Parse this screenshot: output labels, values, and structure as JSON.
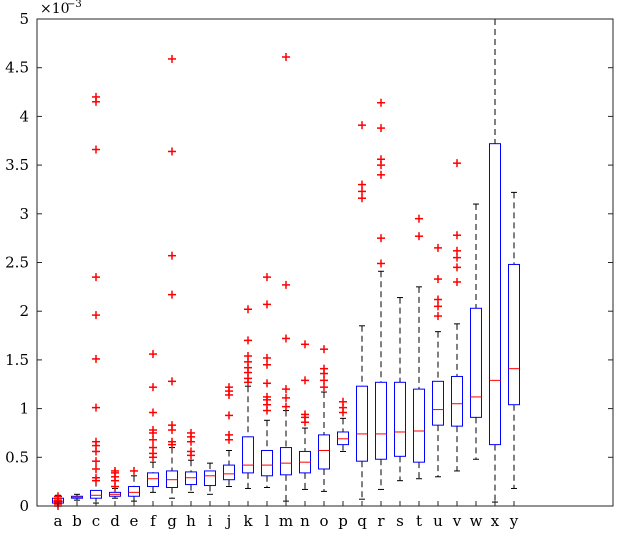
{
  "chart_data": {
    "type": "box",
    "ylim": [
      0,
      0.005
    ],
    "exponent_label": {
      "base": "×10",
      "power": "−3"
    },
    "yticks": [
      {
        "value": 0,
        "label": "0"
      },
      {
        "value": 0.0005,
        "label": "0.5"
      },
      {
        "value": 0.001,
        "label": "1"
      },
      {
        "value": 0.0015,
        "label": "1.5"
      },
      {
        "value": 0.002,
        "label": "2"
      },
      {
        "value": 0.0025,
        "label": "2.5"
      },
      {
        "value": 0.003,
        "label": "3"
      },
      {
        "value": 0.0035,
        "label": "3.5"
      },
      {
        "value": 0.004,
        "label": "4"
      },
      {
        "value": 0.0045,
        "label": "4.5"
      },
      {
        "value": 0.005,
        "label": "5"
      }
    ],
    "categories": [
      "a",
      "b",
      "c",
      "d",
      "e",
      "f",
      "g",
      "h",
      "i",
      "j",
      "k",
      "l",
      "m",
      "n",
      "o",
      "p",
      "q",
      "r",
      "s",
      "t",
      "u",
      "v",
      "w",
      "x",
      "y"
    ],
    "colors": {
      "box": "#0000ff",
      "median": "#ff0000",
      "outlier": "#ff0000",
      "whisker": "#000000"
    },
    "boxes": [
      {
        "min": 0.0,
        "q1": 3e-05,
        "median": 5e-05,
        "q3": 8e-05,
        "max": 0.00011,
        "outliers": [
          0.0,
          2e-05,
          4e-05,
          6e-05,
          8e-05,
          0.0001
        ]
      },
      {
        "min": 6e-05,
        "q1": 8e-05,
        "median": 9e-05,
        "q3": 0.0001,
        "max": 0.00012,
        "outliers": []
      },
      {
        "min": 3e-05,
        "q1": 8e-05,
        "median": 0.00011,
        "q3": 0.00016,
        "max": 0.00026,
        "outliers": [
          0.00026,
          0.00029,
          0.00038,
          0.00046,
          0.00056,
          0.00062,
          0.00066,
          0.00101,
          0.00151,
          0.00196,
          0.00235,
          0.00366,
          0.00415,
          0.0042
        ]
      },
      {
        "min": 8e-05,
        "q1": 0.0001,
        "median": 0.00012,
        "q3": 0.00014,
        "max": 0.00018,
        "outliers": [
          0.0002,
          0.00026,
          0.0003,
          0.00034,
          0.00036
        ]
      },
      {
        "min": 5e-05,
        "q1": 0.0001,
        "median": 0.00014,
        "q3": 0.0002,
        "max": 0.00031,
        "outliers": [
          0.00036
        ]
      },
      {
        "min": 0.00014,
        "q1": 0.0002,
        "median": 0.00028,
        "q3": 0.00034,
        "max": 0.00045,
        "outliers": [
          0.0005,
          0.00054,
          0.0006,
          0.00068,
          0.00075,
          0.00078,
          0.00096,
          0.00122,
          0.00156
        ]
      },
      {
        "min": 8e-05,
        "q1": 0.00019,
        "median": 0.00027,
        "q3": 0.00036,
        "max": 0.0006,
        "outliers": [
          0.00063,
          0.00066,
          0.00078,
          0.00083,
          0.00128,
          0.00217,
          0.00257,
          0.00364,
          0.00459
        ]
      },
      {
        "min": 0.00014,
        "q1": 0.00022,
        "median": 0.00029,
        "q3": 0.00035,
        "max": 0.00047,
        "outliers": [
          0.00052,
          0.00056,
          0.00066,
          0.00071,
          0.00075
        ]
      },
      {
        "min": 0.00012,
        "q1": 0.00021,
        "median": 0.00031,
        "q3": 0.00036,
        "max": 0.00044,
        "outliers": []
      },
      {
        "min": 0.0002,
        "q1": 0.00027,
        "median": 0.00033,
        "q3": 0.00042,
        "max": 0.00057,
        "outliers": [
          0.00068,
          0.00073,
          0.00093,
          0.00114,
          0.00118,
          0.00122
        ]
      },
      {
        "min": 0.00018,
        "q1": 0.00034,
        "median": 0.00042,
        "q3": 0.00071,
        "max": 0.00123,
        "outliers": [
          0.00127,
          0.00131,
          0.00137,
          0.00142,
          0.00148,
          0.00154,
          0.0017,
          0.00202
        ]
      },
      {
        "min": 0.00019,
        "q1": 0.00031,
        "median": 0.00042,
        "q3": 0.00057,
        "max": 0.00088,
        "outliers": [
          0.00098,
          0.00104,
          0.00109,
          0.00112,
          0.00126,
          0.00145,
          0.00152,
          0.00207,
          0.00235
        ]
      },
      {
        "min": 5e-05,
        "q1": 0.00032,
        "median": 0.00044,
        "q3": 0.0006,
        "max": 0.00098,
        "outliers": [
          0.00102,
          0.00111,
          0.0012,
          0.00172,
          0.00227,
          0.00461
        ]
      },
      {
        "min": 0.00017,
        "q1": 0.00034,
        "median": 0.00045,
        "q3": 0.00056,
        "max": 0.0008,
        "outliers": [
          0.00086,
          0.00091,
          0.00094,
          0.00129,
          0.00166
        ]
      },
      {
        "min": 0.00015,
        "q1": 0.00038,
        "median": 0.00057,
        "q3": 0.00073,
        "max": 0.00117,
        "outliers": [
          0.00122,
          0.00129,
          0.00136,
          0.00141,
          0.00161
        ]
      },
      {
        "min": 0.00056,
        "q1": 0.00063,
        "median": 0.00069,
        "q3": 0.00076,
        "max": 0.0009,
        "outliers": [
          0.00096,
          0.00101,
          0.00107
        ]
      },
      {
        "min": 7e-05,
        "q1": 0.00046,
        "median": 0.00074,
        "q3": 0.00123,
        "max": 0.00185,
        "outliers": [
          0.00316,
          0.00323,
          0.0033,
          0.00391
        ]
      },
      {
        "min": 0.00017,
        "q1": 0.00048,
        "median": 0.00074,
        "q3": 0.00127,
        "max": 0.00241,
        "outliers": [
          0.00249,
          0.00275,
          0.0034,
          0.0035,
          0.00356,
          0.00388,
          0.00414
        ]
      },
      {
        "min": 0.00026,
        "q1": 0.00051,
        "median": 0.00076,
        "q3": 0.00127,
        "max": 0.00214,
        "outliers": []
      },
      {
        "min": 0.00028,
        "q1": 0.00045,
        "median": 0.00077,
        "q3": 0.0012,
        "max": 0.00225,
        "outliers": [
          0.00277,
          0.00295
        ]
      },
      {
        "min": 0.0003,
        "q1": 0.00083,
        "median": 0.00099,
        "q3": 0.00128,
        "max": 0.00179,
        "outliers": [
          0.00195,
          0.00205,
          0.00212,
          0.00233,
          0.00265
        ]
      },
      {
        "min": 0.00036,
        "q1": 0.00082,
        "median": 0.00105,
        "q3": 0.00133,
        "max": 0.00187,
        "outliers": [
          0.0023,
          0.00245,
          0.00255,
          0.00262,
          0.00278,
          0.00352
        ]
      },
      {
        "min": 0.00048,
        "q1": 0.00091,
        "median": 0.00112,
        "q3": 0.00203,
        "max": 0.0031,
        "outliers": []
      },
      {
        "min": 4e-05,
        "q1": 0.00063,
        "median": 0.00129,
        "q3": 0.00372,
        "max": 0.005,
        "outliers": []
      },
      {
        "min": 0.00018,
        "q1": 0.00104,
        "median": 0.00141,
        "q3": 0.00248,
        "max": 0.00322,
        "outliers": []
      }
    ]
  }
}
